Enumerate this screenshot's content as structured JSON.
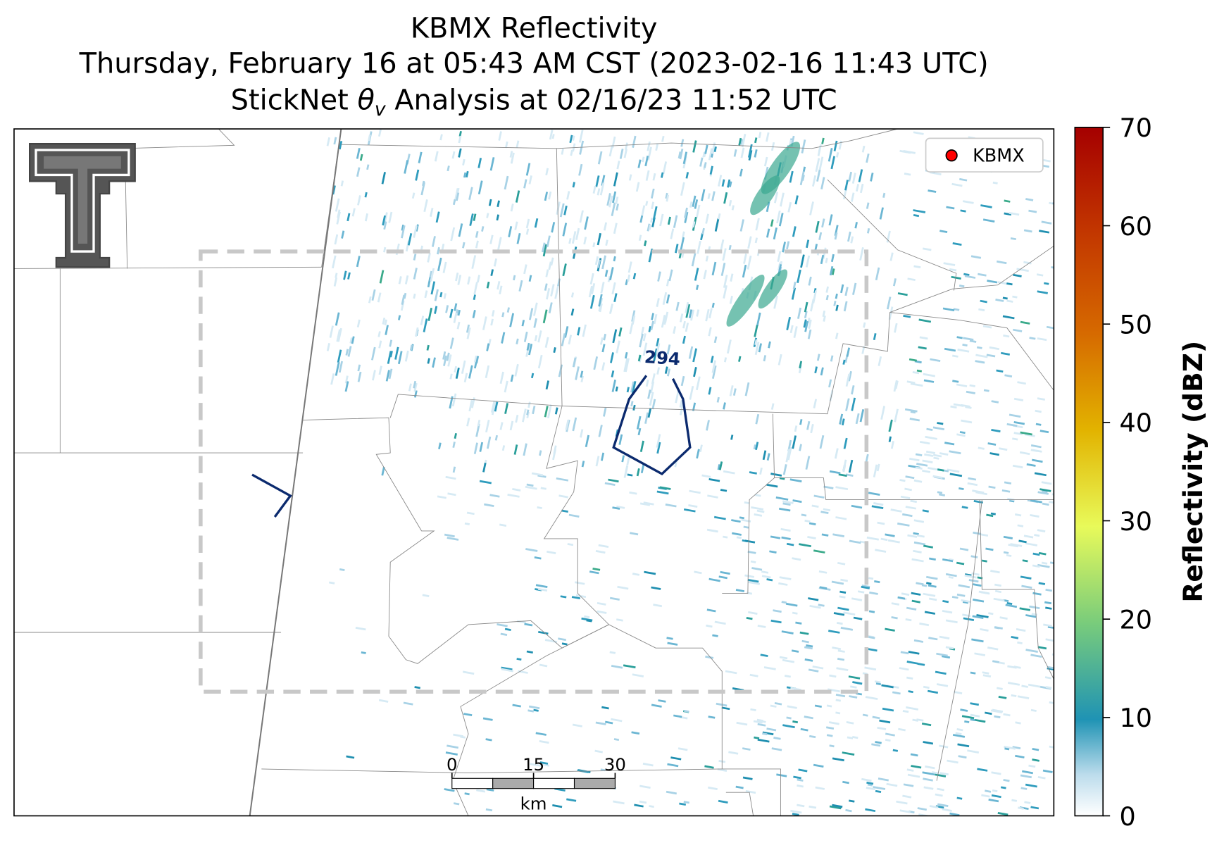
{
  "title": {
    "line1": "KBMX Reflectivity",
    "line2": "Thursday, February 16 at 05:43 AM CST (2023-02-16 11:43 UTC)",
    "line3": {
      "before": "StickNet ",
      "symbol": "θ",
      "subscript": "v",
      "after": " Analysis at 02/16/23 11:52 UTC"
    }
  },
  "map": {
    "legend": [
      "KBMX"
    ],
    "contour_label": "294",
    "scale_bar": {
      "ticks": [
        0,
        15,
        30
      ],
      "unit": "km"
    }
  },
  "colorbar": {
    "label": "Reflectivity (dBZ)",
    "lim": [
      0,
      70
    ],
    "ticks": [
      0,
      10,
      20,
      30,
      40,
      50,
      60,
      70
    ]
  }
}
